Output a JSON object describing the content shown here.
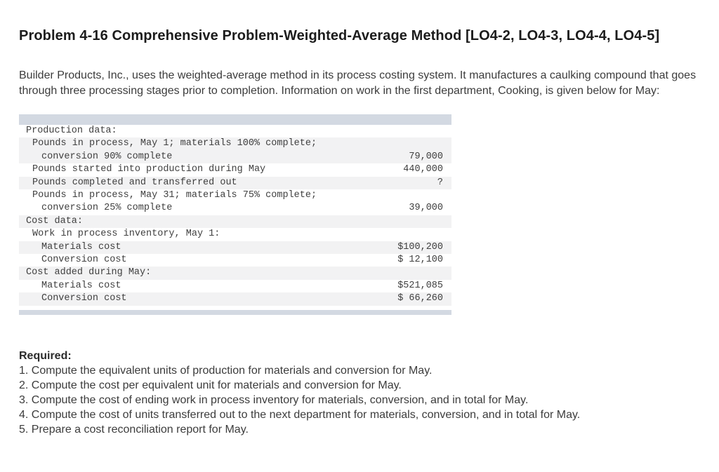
{
  "title": "Problem 4-16 Comprehensive Problem-Weighted-Average Method [LO4-2, LO4-3, LO4-4, LO4-5]",
  "intro": "Builder Products, Inc., uses the weighted-average method in its process costing system. It manufactures a caulking compound that goes through three processing stages prior to completion. Information on work in the first department, Cooking, is given below for May:",
  "table": {
    "rows": [
      {
        "shaded": false,
        "value": "",
        "lines": [
          {
            "indent": 1,
            "text": "Production data:"
          }
        ]
      },
      {
        "shaded": true,
        "value": "79,000",
        "lines": [
          {
            "indent": 2,
            "text": "Pounds in process, May 1; materials 100% complete;"
          },
          {
            "indent": 3,
            "text": "conversion 90% complete"
          }
        ]
      },
      {
        "shaded": false,
        "value": "440,000",
        "lines": [
          {
            "indent": 2,
            "text": "Pounds started into production during May"
          }
        ]
      },
      {
        "shaded": true,
        "value": "?",
        "lines": [
          {
            "indent": 2,
            "text": "Pounds completed and transferred out"
          }
        ]
      },
      {
        "shaded": false,
        "value": "39,000",
        "lines": [
          {
            "indent": 2,
            "text": "Pounds in process, May 31; materials 75% complete;"
          },
          {
            "indent": 3,
            "text": "conversion 25% complete"
          }
        ]
      },
      {
        "shaded": true,
        "value": "",
        "lines": [
          {
            "indent": 1,
            "text": "Cost data:"
          }
        ]
      },
      {
        "shaded": false,
        "value": "",
        "lines": [
          {
            "indent": 2,
            "text": "Work in process inventory, May 1:"
          }
        ]
      },
      {
        "shaded": true,
        "value": "$100,200",
        "lines": [
          {
            "indent": 3,
            "text": "Materials cost"
          }
        ]
      },
      {
        "shaded": false,
        "value": "$ 12,100",
        "lines": [
          {
            "indent": 3,
            "text": "Conversion cost"
          }
        ]
      },
      {
        "shaded": true,
        "value": "",
        "lines": [
          {
            "indent": 1,
            "text": "Cost added during May:"
          }
        ]
      },
      {
        "shaded": false,
        "value": "$521,085",
        "lines": [
          {
            "indent": 3,
            "text": "Materials cost"
          }
        ]
      },
      {
        "shaded": true,
        "value": "$ 66,260",
        "lines": [
          {
            "indent": 3,
            "text": "Conversion cost"
          }
        ]
      }
    ]
  },
  "required": {
    "heading": "Required:",
    "items": [
      "1. Compute the equivalent units of production for materials and conversion for May.",
      "2. Compute the cost per equivalent unit for materials and conversion for May.",
      "3. Compute the cost of ending work in process inventory for materials, conversion, and in total for May.",
      "4. Compute the cost of units transferred out to the next department for materials, conversion, and in total for May.",
      "5. Prepare a cost reconciliation report for May."
    ]
  },
  "colors": {
    "table_bar": "#d3d9e2",
    "row_stripe": "#f2f2f3",
    "body_text": "#3c3c3c",
    "title_text": "#1c1c1c"
  }
}
